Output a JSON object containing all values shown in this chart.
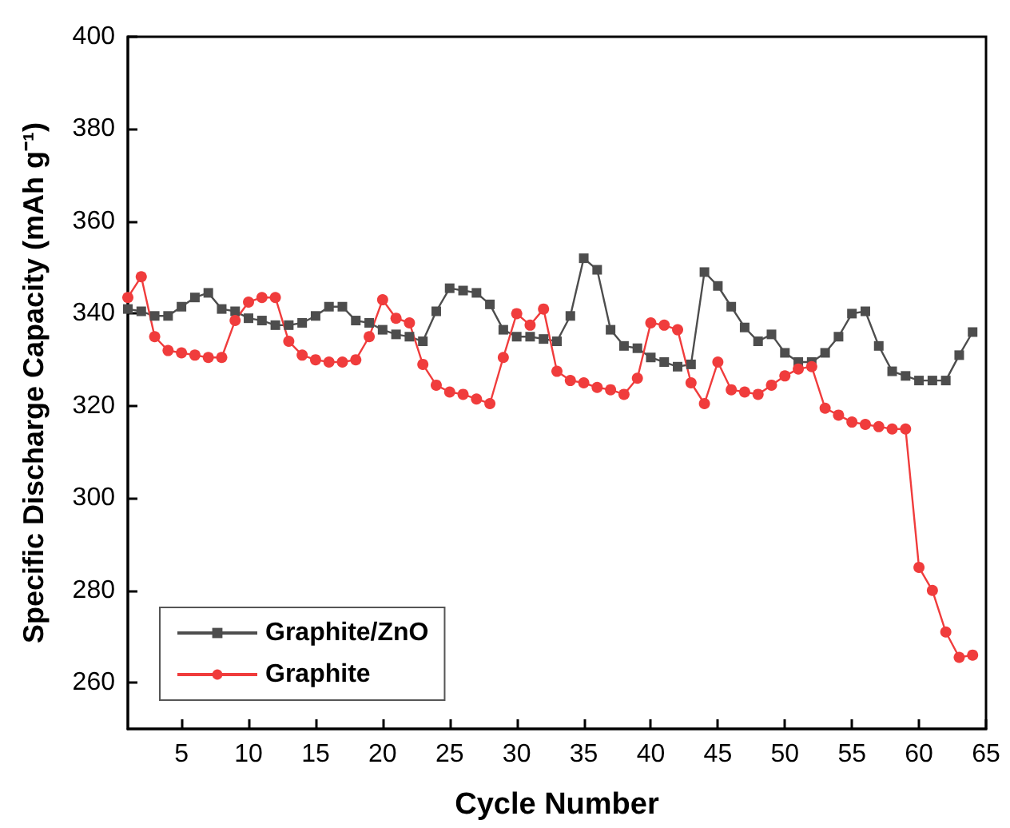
{
  "chart_data": {
    "type": "line",
    "xlabel": "Cycle Number",
    "ylabel": "Specific Discharge Capacity (mAh g⁻¹)",
    "x": [
      1,
      2,
      3,
      4,
      5,
      6,
      7,
      8,
      9,
      10,
      11,
      12,
      13,
      14,
      15,
      16,
      17,
      18,
      19,
      20,
      21,
      22,
      23,
      24,
      25,
      26,
      27,
      28,
      29,
      30,
      31,
      32,
      33,
      34,
      35,
      36,
      37,
      38,
      39,
      40,
      41,
      42,
      43,
      44,
      45,
      46,
      47,
      48,
      49,
      50,
      51,
      52,
      53,
      54,
      55,
      56,
      57,
      58,
      59,
      60,
      61,
      62,
      63,
      64
    ],
    "series": [
      {
        "name": "Graphite/ZnO",
        "color": "#4d4d4d",
        "marker": "square",
        "values": [
          341,
          340.5,
          339.5,
          339.5,
          341.5,
          343.5,
          344.5,
          341,
          340.5,
          339,
          338.5,
          337.5,
          337.5,
          338,
          339.5,
          341.5,
          341.5,
          338.5,
          338,
          336.5,
          335.5,
          335,
          334,
          340.5,
          345.5,
          345,
          344.5,
          342,
          336.5,
          335,
          335,
          334.5,
          334,
          339.5,
          352,
          349.5,
          336.5,
          333,
          332.5,
          330.5,
          329.5,
          328.5,
          329,
          349,
          346,
          341.5,
          337,
          334,
          335.5,
          331.5,
          329.5,
          329.5,
          331.5,
          335,
          340,
          340.5,
          333,
          327.5,
          326.5,
          325.5,
          325.5,
          325.5,
          331,
          336
        ]
      },
      {
        "name": "Graphite",
        "color": "#f03c3c",
        "marker": "circle",
        "values": [
          343.5,
          348,
          335,
          332,
          331.5,
          331,
          330.5,
          330.5,
          338.5,
          342.5,
          343.5,
          343.5,
          334,
          331,
          330,
          329.5,
          329.5,
          330,
          335,
          343,
          339,
          338,
          329,
          324.5,
          323,
          322.5,
          321.5,
          320.5,
          330.5,
          340,
          337.5,
          341,
          327.5,
          325.5,
          325,
          324,
          323.5,
          322.5,
          326,
          338,
          337.5,
          336.5,
          325,
          320.5,
          329.5,
          323.5,
          323,
          322.5,
          324.5,
          326.5,
          328,
          328.5,
          319.5,
          318,
          316.5,
          316,
          315.5,
          315,
          315,
          285,
          280,
          271,
          265.5,
          266
        ]
      }
    ],
    "xlim": [
      1,
      65
    ],
    "xticks": [
      5,
      10,
      15,
      20,
      25,
      30,
      35,
      40,
      45,
      50,
      55,
      60,
      65
    ],
    "ylim": [
      250,
      400
    ],
    "yticks": [
      260,
      280,
      300,
      320,
      340,
      360,
      380,
      400
    ],
    "grid": false,
    "legend": "bottom left",
    "line_style": "solid"
  }
}
